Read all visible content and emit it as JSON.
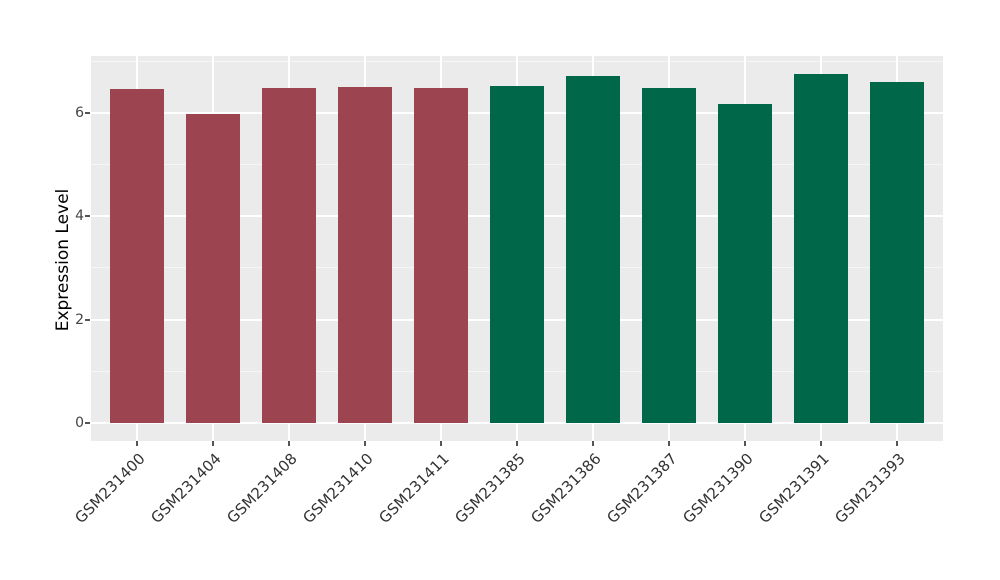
{
  "figure": {
    "background": "#FFFFFF",
    "panel_background": "#EBEBEB",
    "gridline_color": "#FFFFFF",
    "tick_color": "#555555",
    "tick_label_color": "#444444",
    "axis_title_color": "#000000"
  },
  "chart_data": {
    "type": "bar",
    "title": "",
    "xlabel": "",
    "ylabel": "Expression Level",
    "categories": [
      "GSM231400",
      "GSM231404",
      "GSM231408",
      "GSM231410",
      "GSM231411",
      "GSM231385",
      "GSM231386",
      "GSM231387",
      "GSM231390",
      "GSM231391",
      "GSM231393"
    ],
    "values": [
      6.47,
      5.97,
      6.48,
      6.49,
      6.48,
      6.51,
      6.71,
      6.48,
      6.17,
      6.76,
      6.6
    ],
    "bar_colors": [
      "#9C4450",
      "#9C4450",
      "#9C4450",
      "#9C4450",
      "#9C4450",
      "#006749",
      "#006749",
      "#006749",
      "#006749",
      "#006749",
      "#006749"
    ],
    "group_colors": {
      "red_group": "#9C4450",
      "green_group": "#006749"
    },
    "yticks": [
      0,
      2,
      4,
      6
    ],
    "yticks_minor": [
      1,
      3,
      5,
      7
    ],
    "ylim": [
      -0.35,
      7.1
    ],
    "grid": true,
    "legend": false,
    "x_tick_rotation": -45
  }
}
